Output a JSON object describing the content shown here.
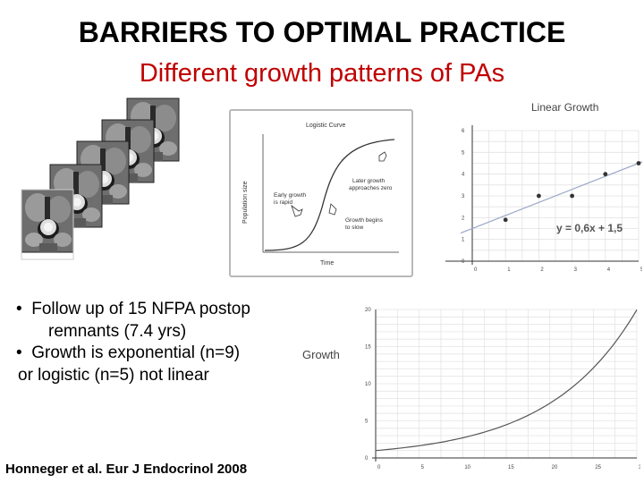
{
  "slide": {
    "title": "BARRIERS TO OPTIMAL PRACTICE",
    "subtitle": "Different growth patterns of PAs",
    "bullets": [
      {
        "line1": "Follow up of 15 NFPA postop",
        "line2": "remnants (7.4 yrs)"
      },
      {
        "line1": "Growth is exponential (n=9)",
        "line2": "or logistic (n=5) not linear"
      }
    ],
    "citation": "Honneger et al. Eur J Endocrinol 2008"
  },
  "logistic_figure": {
    "title": "Logistic Curve",
    "ylabel": "Population size",
    "xlabel": "Time",
    "annotations": {
      "early": [
        "Early growth",
        "is rapid"
      ],
      "later": [
        "Later growth",
        "approaches zero"
      ],
      "begins": [
        "Growth begins",
        "to slow"
      ]
    }
  },
  "chart_data": [
    {
      "type": "scatter",
      "title": "Linear Growth",
      "equation": "y = 0,6x + 1,5",
      "xlim": [
        0,
        5
      ],
      "ylim": [
        0,
        6
      ],
      "x_ticks": [
        "0",
        "1",
        "2",
        "3",
        "4",
        "5"
      ],
      "y_ticks": [
        "0",
        "1",
        "2",
        "3",
        "4",
        "5",
        "6"
      ],
      "points": [
        [
          1,
          1.9
        ],
        [
          2,
          3
        ],
        [
          3,
          3
        ],
        [
          4,
          4
        ],
        [
          5,
          4.5
        ]
      ],
      "trendline": {
        "slope": 0.6,
        "intercept": 1.5
      }
    },
    {
      "type": "line",
      "title": "Growth",
      "xlim": [
        0,
        30
      ],
      "ylim": [
        0,
        20
      ],
      "x_ticks": [
        "0",
        "5",
        "10",
        "15",
        "20",
        "25",
        "30"
      ],
      "y_ticks": [
        "0",
        "5",
        "10",
        "15",
        "20"
      ],
      "curve": {
        "a": 1,
        "b": 0.0998
      }
    }
  ]
}
